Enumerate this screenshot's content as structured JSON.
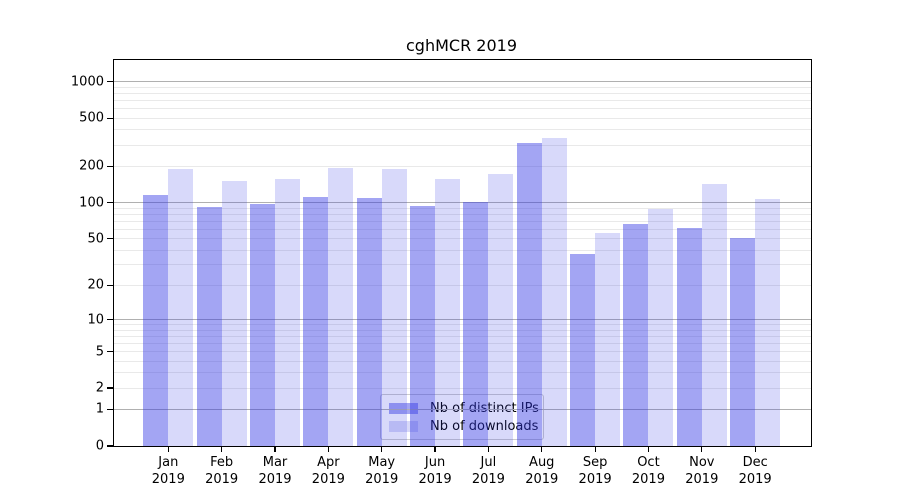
{
  "title": "cghMCR 2019",
  "chart_data": {
    "type": "bar",
    "title": "cghMCR 2019",
    "x": {
      "months": [
        "Jan",
        "Feb",
        "Mar",
        "Apr",
        "May",
        "Jun",
        "Jul",
        "Aug",
        "Sep",
        "Oct",
        "Nov",
        "Dec"
      ],
      "year": "2019"
    },
    "series": [
      {
        "name": "Nb of distinct IPs",
        "bar_color": "rgba(50,55,228,0.45)",
        "legend_color": "#a3a5f2",
        "values": [
          115,
          92,
          98,
          112,
          110,
          94,
          102,
          313,
          37,
          66,
          62,
          51
        ]
      },
      {
        "name": "Nb of downloads",
        "bar_color": "rgba(50,55,228,0.19)",
        "legend_color": "#d8d9f8",
        "values": [
          190,
          150,
          156,
          193,
          191,
          158,
          172,
          345,
          56,
          88,
          144,
          108
        ]
      }
    ],
    "y_axis": {
      "scale": "log1p",
      "tick_labels": [
        0,
        1,
        2,
        5,
        10,
        20,
        50,
        100,
        200,
        500,
        1000
      ],
      "major_ticks": [
        1,
        10,
        100,
        1000
      ],
      "ymin": 0,
      "ymax": 1480
    },
    "grid": {
      "major_color": "#b0b0b0",
      "minor_color": "#e9e9e9"
    },
    "legend_position": "lower-center",
    "axis_color": "#000000"
  }
}
